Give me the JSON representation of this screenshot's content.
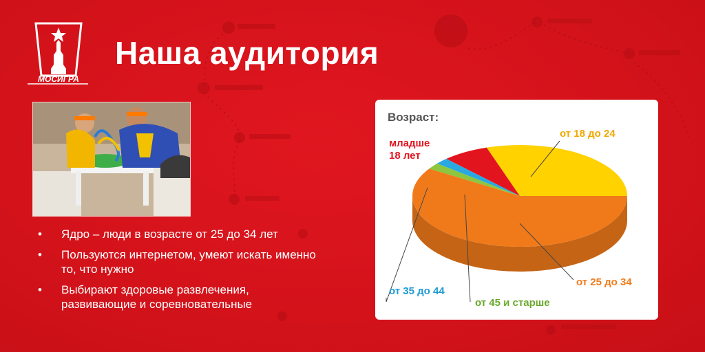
{
  "slide": {
    "title": "Наша аудитория",
    "logo_text": "МОСИГРА"
  },
  "bullets": [
    "Ядро – люди в возрасте от 25 до 34 лет",
    "Пользуются интернетом, умеют искать именно то, что нужно",
    "Выбирают здоровые развлечения, развивающие и соревновательные"
  ],
  "bullet_symbol": "•",
  "colors": {
    "background": "#d8141c",
    "slice_18_24": "#ffd200",
    "slice_25_34": "#f07a1a",
    "slice_under_18": "#e2151f",
    "slice_35_44": "#29a9e1",
    "slice_45_plus": "#8dc63f"
  },
  "chart_data": {
    "type": "pie",
    "title": "Возраст:",
    "labels": [
      "от 18 до 24",
      "от 25 до 34",
      "младше 18 лет",
      "от 35 до 44",
      "от 45 и старше"
    ],
    "values": [
      30,
      59,
      7,
      2,
      2
    ],
    "unit": "%",
    "style": "3d"
  }
}
